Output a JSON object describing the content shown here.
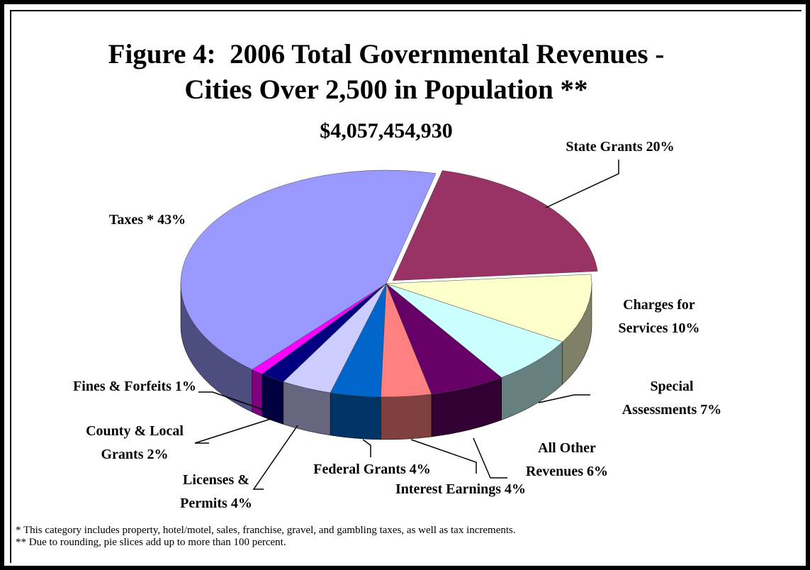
{
  "chart_data": {
    "type": "pie3d",
    "title": "Figure 4:  2006 Total Governmental Revenues - Cities Over 2,500 in Population **",
    "subtitle": "$4,057,454,930",
    "categories": [
      "State Grants",
      "Charges for Services",
      "Special Assessments",
      "All Other Revenues",
      "Interest Earnings",
      "Federal Grants",
      "Licenses & Permits",
      "County & Local Grants",
      "Fines & Forfeits",
      "Taxes *"
    ],
    "values": [
      20,
      10,
      7,
      6,
      4,
      4,
      4,
      2,
      1,
      43
    ],
    "value_labels": [
      "20%",
      "10%",
      "7%",
      "6%",
      "4%",
      "4%",
      "4%",
      "2%",
      "1%",
      "43%"
    ],
    "colors": [
      "#993366",
      "#ffffcc",
      "#ccffff",
      "#660066",
      "#ff8080",
      "#0066cc",
      "#ccccff",
      "#000080",
      "#ff00ff",
      "#9999ff"
    ],
    "footnotes": [
      "* This category includes property, hotel/motel, sales, franchise, gravel, and gambling taxes, as well as tax increments.",
      "** Due to rounding, pie slices add up to more than 100 percent."
    ]
  }
}
